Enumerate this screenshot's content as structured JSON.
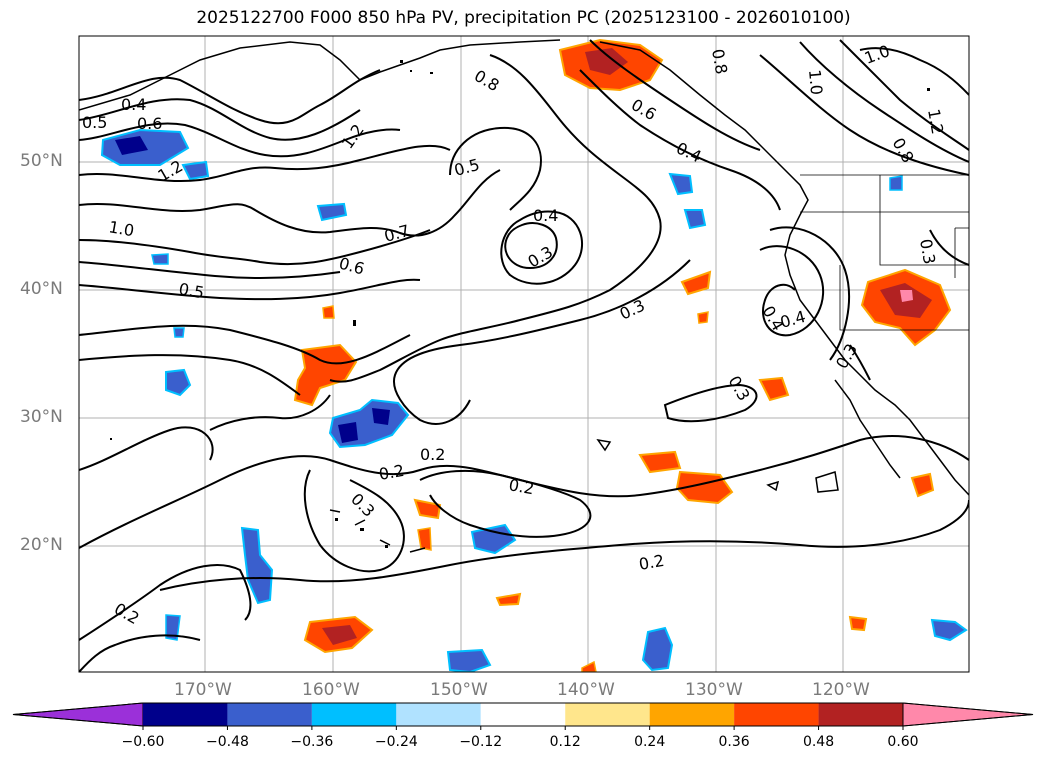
{
  "title": "2025122700 F000 850 hPa PV, precipitation PC (2025123100 - 2026010100)",
  "lat_labels": [
    "50°N",
    "40°N",
    "30°N",
    "20°N"
  ],
  "lon_labels": [
    "170°W",
    "160°W",
    "150°W",
    "140°W",
    "130°W",
    "120°W"
  ],
  "contour_labels": [
    "0.4",
    "0.5",
    "0.6",
    "0.8",
    "1.2",
    "1.0",
    "1.2",
    "0.7",
    "0.6",
    "0.5",
    "0.4",
    "0.3",
    "0.5",
    "0.8",
    "0.6",
    "0.4",
    "0.3",
    "0.4",
    "0.4",
    "0.3",
    "0.3",
    "0.2",
    "0.2",
    "0.2",
    "0.3",
    "0.2",
    "0.2",
    "1.0",
    "1.2",
    "0.8",
    "1.0",
    "0.3"
  ],
  "colorbar": {
    "ticks": [
      "−0.60",
      "−0.48",
      "−0.36",
      "−0.24",
      "−0.12",
      "0.12",
      "0.24",
      "0.36",
      "0.48",
      "0.60"
    ],
    "colors": [
      "#9b30d9",
      "#00008b",
      "#3a5fcd",
      "#00bfff",
      "#b0e2ff",
      "#ffffff",
      "#ffe68c",
      "#ffa500",
      "#ff4500",
      "#b22222",
      "#ff88aa"
    ]
  }
}
